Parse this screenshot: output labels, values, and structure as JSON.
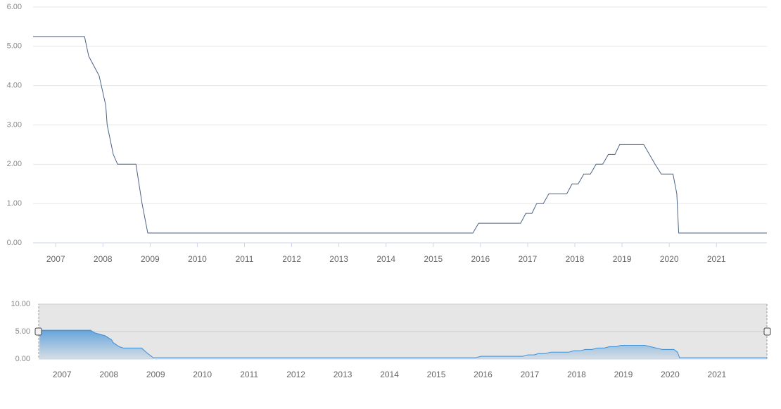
{
  "chart_data": [
    {
      "type": "line",
      "color": "#4a6286",
      "x": [
        2006.52,
        2007.61,
        2007.7,
        2007.92,
        2008.06,
        2008.09,
        2008.22,
        2008.31,
        2008.7,
        2008.83,
        2008.95,
        2015.84,
        2015.96,
        2016.85,
        2016.96,
        2017.09,
        2017.19,
        2017.33,
        2017.45,
        2017.83,
        2017.94,
        2018.07,
        2018.19,
        2018.33,
        2018.45,
        2018.59,
        2018.71,
        2018.85,
        2018.95,
        2019.46,
        2019.7,
        2019.83,
        2020.08,
        2020.16,
        2020.2,
        2022.07
      ],
      "values": [
        5.25,
        5.25,
        4.75,
        4.25,
        3.5,
        3.0,
        2.25,
        2.0,
        2.0,
        1.0,
        0.25,
        0.25,
        0.5,
        0.5,
        0.75,
        0.75,
        1.0,
        1.0,
        1.25,
        1.25,
        1.5,
        1.5,
        1.75,
        1.75,
        2.0,
        2.0,
        2.25,
        2.25,
        2.5,
        2.5,
        2.0,
        1.75,
        1.75,
        1.25,
        0.25,
        0.25
      ],
      "xlim": [
        2006.52,
        2022.07
      ],
      "xticks": [
        2007,
        2008,
        2009,
        2010,
        2011,
        2012,
        2013,
        2014,
        2015,
        2016,
        2017,
        2018,
        2019,
        2020,
        2021
      ],
      "ylim": [
        0,
        6
      ],
      "yticks": [
        {
          "value": 0,
          "label": "0.00"
        },
        {
          "value": 1,
          "label": "1.00"
        },
        {
          "value": 2,
          "label": "2.00"
        },
        {
          "value": 3,
          "label": "3.00"
        },
        {
          "value": 4,
          "label": "4.00"
        },
        {
          "value": 5,
          "label": "5.00"
        },
        {
          "value": 6,
          "label": "6.00"
        }
      ],
      "grid": true
    },
    {
      "type": "area",
      "color": "#3d8fd8",
      "x": [
        2006.52,
        2007.61,
        2007.7,
        2007.92,
        2008.06,
        2008.09,
        2008.22,
        2008.31,
        2008.7,
        2008.83,
        2008.95,
        2015.84,
        2015.96,
        2016.85,
        2016.96,
        2017.09,
        2017.19,
        2017.33,
        2017.45,
        2017.83,
        2017.94,
        2018.07,
        2018.19,
        2018.33,
        2018.45,
        2018.59,
        2018.71,
        2018.85,
        2018.95,
        2019.46,
        2019.7,
        2019.83,
        2020.08,
        2020.16,
        2020.2,
        2022.07
      ],
      "values": [
        5.25,
        5.25,
        4.75,
        4.25,
        3.5,
        3.0,
        2.25,
        2.0,
        2.0,
        1.0,
        0.25,
        0.25,
        0.5,
        0.5,
        0.75,
        0.75,
        1.0,
        1.0,
        1.25,
        1.25,
        1.5,
        1.5,
        1.75,
        1.75,
        2.0,
        2.0,
        2.25,
        2.25,
        2.5,
        2.5,
        2.0,
        1.75,
        1.75,
        1.25,
        0.25,
        0.25
      ],
      "xlim": [
        2006.5,
        2022.07
      ],
      "xticks": [
        2007,
        2008,
        2009,
        2010,
        2011,
        2012,
        2013,
        2014,
        2015,
        2016,
        2017,
        2018,
        2019,
        2020,
        2021
      ],
      "ylim": [
        0,
        10
      ],
      "yticks": [
        {
          "value": 0,
          "label": "0.00"
        },
        {
          "value": 5,
          "label": "5.00"
        },
        {
          "value": 10,
          "label": "10.00"
        }
      ],
      "grid": true
    }
  ]
}
